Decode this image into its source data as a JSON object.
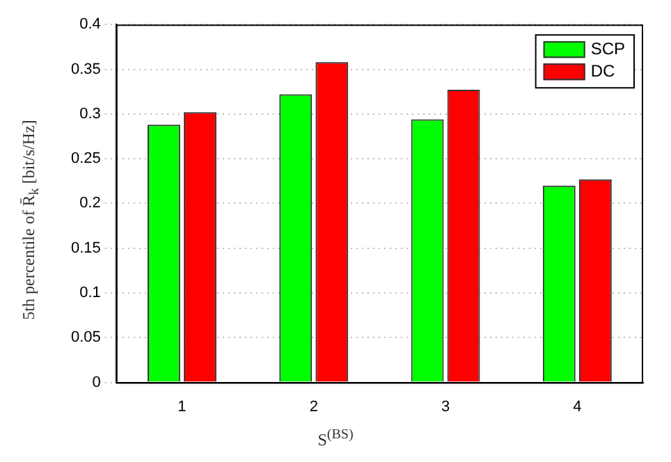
{
  "chart_data": {
    "type": "bar",
    "xlabel": "S$^{(BS)}$",
    "ylabel": "5th percentile of R̄$_{k}$ [bit/s/Hz]",
    "categories": [
      "1",
      "2",
      "3",
      "4"
    ],
    "series": [
      {
        "name": "SCP",
        "color": "#00ff00",
        "values": [
          0.288,
          0.322,
          0.294,
          0.22
        ]
      },
      {
        "name": "DC",
        "color": "#ff0000",
        "values": [
          0.302,
          0.358,
          0.327,
          0.227
        ]
      }
    ],
    "ylim": [
      0,
      0.4
    ],
    "yticks": [
      0,
      0.05,
      0.1,
      0.15,
      0.2,
      0.25,
      0.3,
      0.35,
      0.4
    ],
    "grid": "y",
    "legend": "top right"
  }
}
